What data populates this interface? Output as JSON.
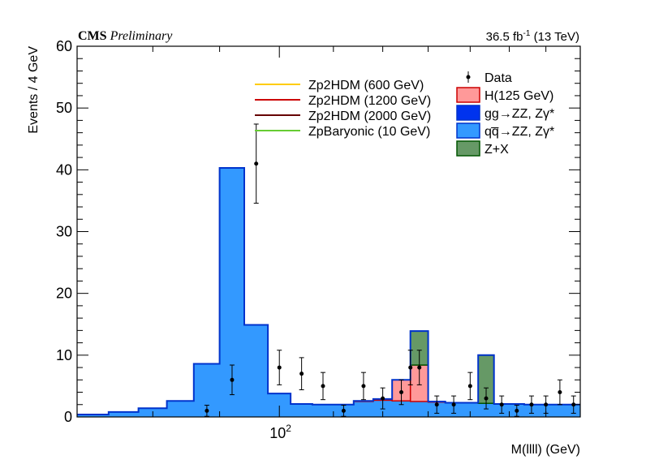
{
  "header": {
    "experiment": "CMS",
    "status": "Preliminary",
    "lumi_prefix": "36.5 fb",
    "lumi_exp": "-1",
    "lumi_suffix": " (13 TeV)"
  },
  "colors": {
    "qqZZ": "#3399ff",
    "ggZZ": "#0033ee",
    "H125": "#ff9999",
    "H125_line": "#cc0000",
    "ZX": "#669966",
    "ZX_line": "#005500",
    "bkg_line": "#0033cc",
    "Zp2HDM_600": "#ffcc00",
    "Zp2HDM_1200": "#cc0000",
    "Zp2HDM_2000": "#660000",
    "ZpBaryonic_10": "#66cc33"
  },
  "chart_data": {
    "type": "bar",
    "title": "",
    "xlabel": "M(llll) (GeV)",
    "ylabel": "Events / 4 GeV",
    "xscale": "log",
    "xlim": [
      70,
      170
    ],
    "ylim": [
      0,
      60
    ],
    "yticks": [
      0,
      10,
      20,
      30,
      40,
      50,
      60
    ],
    "xticks": [
      {
        "value": 100,
        "base": "10",
        "exp": "2"
      }
    ],
    "grid": false,
    "legend_placement": "top-right",
    "bin_edges": [
      70,
      74,
      78,
      82,
      86,
      90,
      94,
      98,
      102,
      106,
      110,
      114,
      118,
      122,
      126,
      130,
      134,
      138,
      142,
      146,
      150,
      154,
      158,
      162,
      166,
      170
    ],
    "series": [
      {
        "name": "qq̅→ZZ, Zγ*",
        "key": "qqZZ",
        "values": [
          0.4,
          0.8,
          1.4,
          2.6,
          8.6,
          40.3,
          14.9,
          3.8,
          2.1,
          2.0,
          2.0,
          2.5,
          2.7,
          2.6,
          2.5,
          2.4,
          2.3,
          2.3,
          2.2,
          2.1,
          2.1,
          2.0,
          2.0,
          2.0,
          2.0
        ]
      },
      {
        "name": "gg→ZZ, Zγ*",
        "key": "ggZZ",
        "values": [
          0,
          0,
          0,
          0,
          0,
          0,
          0,
          0,
          0,
          0,
          0,
          0,
          0,
          0,
          0,
          0,
          0,
          0,
          0,
          0,
          0,
          0,
          0,
          0,
          0
        ]
      },
      {
        "name": "H(125 GeV)",
        "key": "H125",
        "values": [
          0,
          0,
          0,
          0,
          0,
          0,
          0,
          0,
          0,
          0,
          0,
          0.1,
          0.2,
          3.4,
          5.9,
          0.1,
          0,
          0,
          0,
          0,
          0,
          0,
          0,
          0,
          0
        ]
      },
      {
        "name": "Z+X",
        "key": "ZX",
        "values": [
          0,
          0,
          0,
          0,
          0,
          0,
          0,
          0,
          0,
          0,
          0,
          0,
          0,
          0,
          5.5,
          0,
          0,
          0,
          7.8,
          0,
          0,
          0,
          0,
          0,
          0
        ]
      }
    ],
    "data_points": [
      {
        "x": 88,
        "y": 1,
        "err": 0.9
      },
      {
        "x": 92,
        "y": 6,
        "err": 2.4
      },
      {
        "x": 96,
        "y": 41,
        "err": 6.4
      },
      {
        "x": 100,
        "y": 8,
        "err": 2.8
      },
      {
        "x": 104,
        "y": 7,
        "err": 2.6
      },
      {
        "x": 108,
        "y": 5,
        "err": 2.2
      },
      {
        "x": 112,
        "y": 1,
        "err": 0.9
      },
      {
        "x": 116,
        "y": 5,
        "err": 2.2
      },
      {
        "x": 120,
        "y": 3,
        "err": 1.7
      },
      {
        "x": 124,
        "y": 4,
        "err": 2.0
      },
      {
        "x": 126,
        "y": 8,
        "err": 2.8
      },
      {
        "x": 128,
        "y": 8,
        "err": 2.8
      },
      {
        "x": 132,
        "y": 2,
        "err": 1.4
      },
      {
        "x": 136,
        "y": 2,
        "err": 1.4
      },
      {
        "x": 140,
        "y": 5,
        "err": 2.2
      },
      {
        "x": 144,
        "y": 3,
        "err": 1.7
      },
      {
        "x": 148,
        "y": 2,
        "err": 1.4
      },
      {
        "x": 152,
        "y": 1,
        "err": 0.9
      },
      {
        "x": 156,
        "y": 2,
        "err": 1.4
      },
      {
        "x": 160,
        "y": 2,
        "err": 1.4
      },
      {
        "x": 164,
        "y": 4,
        "err": 2.0
      },
      {
        "x": 168,
        "y": 2,
        "err": 1.4
      }
    ],
    "signal_curves": [
      {
        "name": "Zp2HDM (600 GeV)",
        "key": "Zp2HDM_600"
      },
      {
        "name": "Zp2HDM (1200 GeV)",
        "key": "Zp2HDM_1200"
      },
      {
        "name": "Zp2HDM (2000 GeV)",
        "key": "Zp2HDM_2000"
      },
      {
        "name": "ZpBaryonic (10 GeV)",
        "key": "ZpBaryonic_10"
      }
    ],
    "legend_right": [
      {
        "label": "Data",
        "kind": "marker"
      },
      {
        "label": "H(125 GeV)",
        "kind": "box",
        "key": "H125"
      },
      {
        "label": "gg→ZZ, Zγ*",
        "kind": "box",
        "key": "ggZZ"
      },
      {
        "label": "qq̅→ZZ, Zγ*",
        "kind": "box",
        "key": "qqZZ"
      },
      {
        "label": "Z+X",
        "kind": "box",
        "key": "ZX"
      }
    ]
  }
}
